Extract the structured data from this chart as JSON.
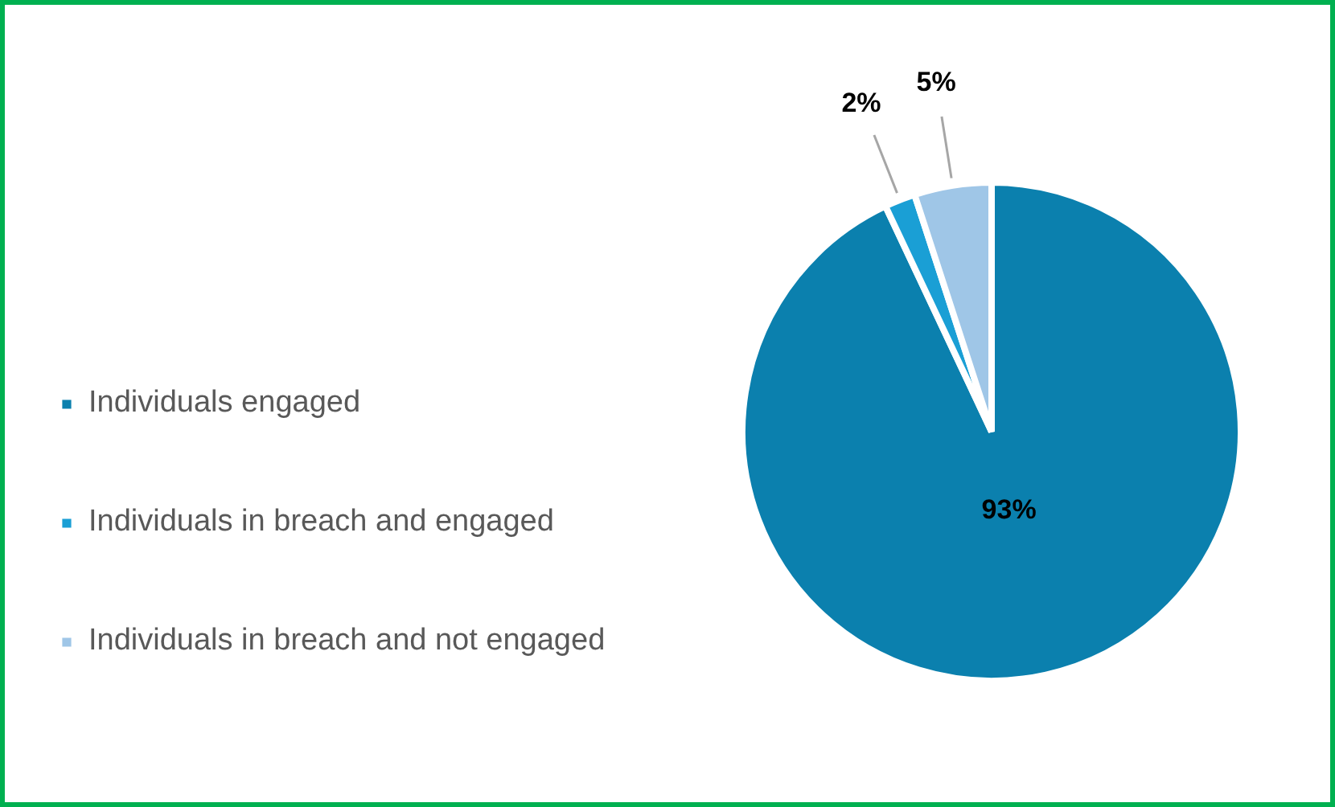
{
  "chart_data": {
    "type": "pie",
    "categories": [
      "Individuals engaged",
      "Individuals in breach and engaged",
      "Individuals in breach and not engaged"
    ],
    "values": [
      93,
      2,
      5
    ],
    "colors": [
      "#0b80ae",
      "#1a9fd5",
      "#9fc6e7"
    ],
    "value_labels": [
      "93%",
      "2%",
      "5%"
    ],
    "legend": "left"
  }
}
